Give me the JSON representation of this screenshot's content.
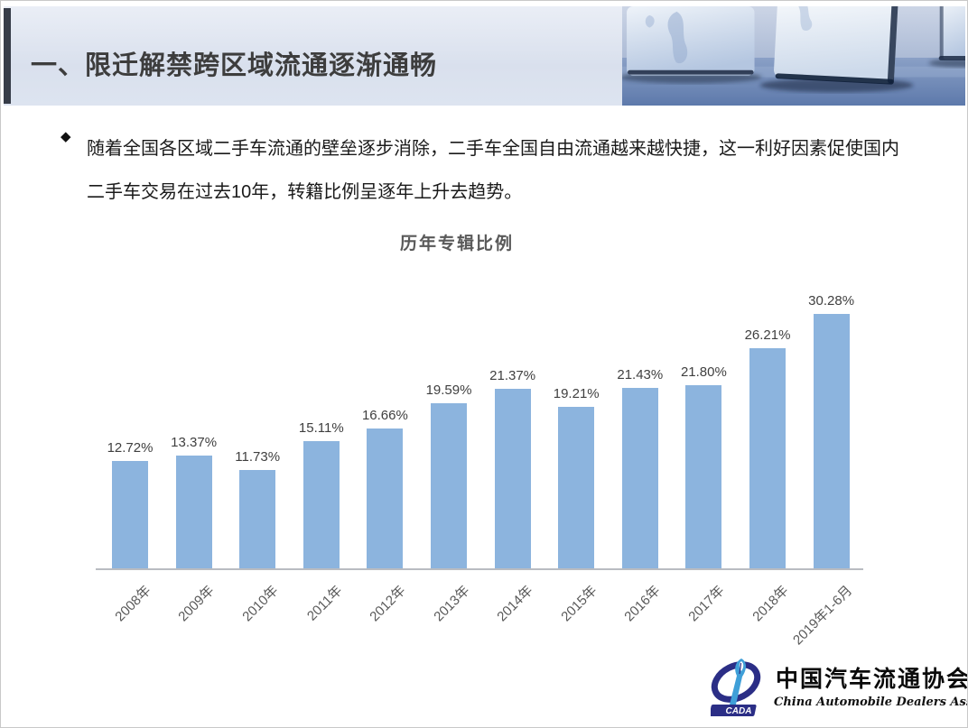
{
  "slide": {
    "header": {
      "title": "一、限迁解禁跨区域流通逐渐通畅"
    },
    "bullet": {
      "marker": "◆",
      "lines": [
        "随着全国各区域二手车流通的壁垒逐步消除，二手车全国自由流通越来越快捷，这一利好因素促使国内",
        "二手车交易在过去10年，转籍比例呈逐年上升去趋势。"
      ]
    },
    "footer_logo": {
      "acronym": "CADA",
      "name_cn": "中国汽车流通协会",
      "name_en": "China Automobile Dealers Association"
    }
  },
  "chart_data": {
    "type": "bar",
    "title": "历年专辑比例",
    "categories": [
      "2008年",
      "2009年",
      "2010年",
      "2011年",
      "2012年",
      "2013年",
      "2014年",
      "2015年",
      "2016年",
      "2017年",
      "2018年",
      "2019年1-6月"
    ],
    "values": [
      12.72,
      13.37,
      11.73,
      15.11,
      16.66,
      19.59,
      21.37,
      19.21,
      21.43,
      21.8,
      26.21,
      30.28
    ],
    "labels": [
      "12.72%",
      "13.37%",
      "11.73%",
      "15.11%",
      "16.66%",
      "19.59%",
      "21.37%",
      "19.21%",
      "21.43%",
      "21.80%",
      "26.21%",
      "30.28%"
    ],
    "xlabel": "",
    "ylabel": "",
    "ylim": [
      0,
      35
    ],
    "grid": false,
    "legend": false,
    "bar_color": "#8cb4de",
    "value_label_color": "#3f3f3f",
    "axis_label_color": "#595959",
    "axis_line_color": "#b9bcc1"
  },
  "colors": {
    "accent_stripe": "#363c48",
    "header_background": "#dde3ef",
    "title_text": "#3d3d3d",
    "chart_title_text": "#595959",
    "logo_navy": "#2b2e86",
    "logo_blue": "#3f9fd8"
  }
}
